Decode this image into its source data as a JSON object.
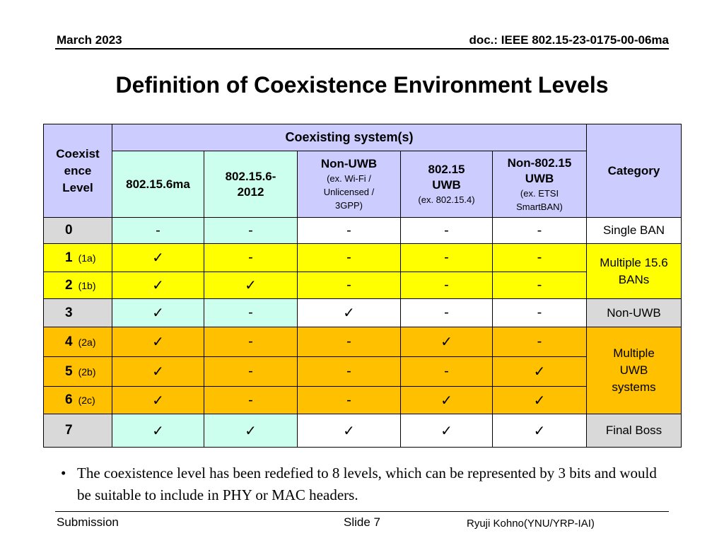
{
  "header": {
    "date": "March  2023",
    "doc": "doc.: IEEE 802.15-23-0175-00-06ma"
  },
  "title": "Definition of Coexistence Environment Levels",
  "table": {
    "level_header": [
      "Coexist",
      "ence",
      "Level"
    ],
    "group_header": "Coexisting system(s)",
    "category_header": "Category",
    "columns": [
      {
        "lines": [
          "802.15.6ma"
        ],
        "sub": []
      },
      {
        "lines": [
          "802.15.6-",
          "2012"
        ],
        "sub": []
      },
      {
        "lines": [
          "Non-UWB"
        ],
        "sub": [
          "(ex. Wi-Fi /",
          "Unlicensed /",
          "3GPP)"
        ]
      },
      {
        "lines": [
          "802.15",
          "UWB"
        ],
        "sub": [
          "(ex. 802.15.4)"
        ]
      },
      {
        "lines": [
          "Non-802.15",
          "UWB"
        ],
        "sub": [
          "(ex. ETSI",
          "SmartBAN)"
        ]
      }
    ],
    "rows": [
      {
        "level": "0",
        "tag": "",
        "cells": [
          "-",
          "-",
          "-",
          "-",
          "-"
        ]
      },
      {
        "level": "1",
        "tag": "(1a)",
        "cells": [
          "✓",
          "-",
          "-",
          "-",
          "-"
        ]
      },
      {
        "level": "2",
        "tag": "(1b)",
        "cells": [
          "✓",
          "✓",
          "-",
          "-",
          "-"
        ]
      },
      {
        "level": "3",
        "tag": "",
        "cells": [
          "✓",
          "-",
          "✓",
          "-",
          "-"
        ]
      },
      {
        "level": "4",
        "tag": "(2a)",
        "cells": [
          "✓",
          "-",
          "-",
          "✓",
          "-"
        ]
      },
      {
        "level": "5",
        "tag": "(2b)",
        "cells": [
          "✓",
          "-",
          "-",
          "-",
          "✓"
        ]
      },
      {
        "level": "6",
        "tag": "(2c)",
        "cells": [
          "✓",
          "-",
          "-",
          "✓",
          "✓"
        ]
      },
      {
        "level": "7",
        "tag": "",
        "cells": [
          "✓",
          "✓",
          "✓",
          "✓",
          "✓"
        ]
      }
    ],
    "categories": [
      {
        "lines": [
          "Single BAN"
        ]
      },
      {
        "lines": [
          "Multiple 15.6",
          "BANs"
        ]
      },
      {
        "lines": [
          "Non-UWB"
        ]
      },
      {
        "lines": [
          "Multiple",
          "UWB",
          "systems"
        ]
      },
      {
        "lines": [
          "Final Boss"
        ]
      }
    ],
    "colors": {
      "header": "#ccccff",
      "level0": "#d9d9d9",
      "cyan": "#ccffee",
      "yellow": "#ffff00",
      "orange": "#ffc000",
      "white": "#ffffff"
    }
  },
  "bullet": "The coexistence level has been redefied to 8 levels, which can be represented by 3 bits and would be suitable to include in PHY or MAC headers.",
  "footer": {
    "left": "Submission",
    "center": "Slide 7",
    "right": "Ryuji Kohno(YNU/YRP-IAI)"
  }
}
